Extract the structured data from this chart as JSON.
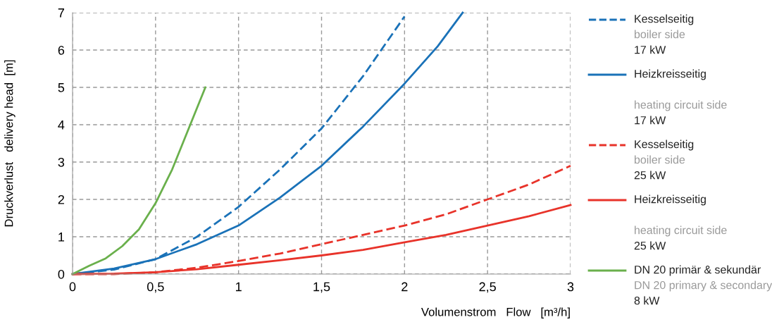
{
  "chart_data": {
    "type": "line",
    "xlabel": "Volumenstrom   Flow   [m³/h]",
    "ylabel": "Druckverlust   delivery head  [m]",
    "xlim": [
      0,
      3
    ],
    "ylim": [
      0,
      7
    ],
    "xticks": [
      0,
      {
        "value": 0.5,
        "label": "0,5"
      },
      1,
      {
        "value": 1.5,
        "label": "1,5"
      },
      2,
      {
        "value": 2.5,
        "label": "2,5"
      },
      3
    ],
    "yticks": [
      0,
      1,
      2,
      3,
      4,
      5,
      6,
      7
    ],
    "grid": true,
    "legend": "right",
    "marker": "none",
    "series": [
      {
        "name": "Kesselseitig\nboiler side\n17 kW",
        "color": "#1a72b8",
        "line_style": "dashed",
        "x": [
          0,
          0.25,
          0.5,
          0.75,
          1,
          1.25,
          1.5,
          1.75,
          2
        ],
        "values": [
          0,
          0.12,
          0.4,
          1.0,
          1.8,
          2.8,
          3.9,
          5.3,
          6.9
        ]
      },
      {
        "name": "Heizkreisseitig\n\nheating circuit side\n17 kW",
        "color": "#1a72b8",
        "line_style": "solid",
        "x": [
          0,
          0.25,
          0.5,
          0.75,
          1,
          1.25,
          1.5,
          1.75,
          2,
          2.2,
          2.35
        ],
        "values": [
          0,
          0.15,
          0.4,
          0.8,
          1.3,
          2.05,
          2.9,
          3.95,
          5.1,
          6.1,
          7.0
        ]
      },
      {
        "name": "Kesselseitig\nboiler side\n25 kW",
        "color": "#e8332a",
        "line_style": "dashed",
        "x": [
          0,
          0.25,
          0.5,
          0.75,
          1,
          1.25,
          1.5,
          1.75,
          2,
          2.25,
          2.5,
          2.75,
          3
        ],
        "values": [
          0,
          0,
          0.05,
          0.17,
          0.35,
          0.55,
          0.8,
          1.05,
          1.3,
          1.6,
          2.0,
          2.4,
          2.9
        ]
      },
      {
        "name": "Heizkreisseitig\n\nheating circuit side\n25 kW",
        "color": "#e8332a",
        "line_style": "solid",
        "x": [
          0,
          0.25,
          0.5,
          0.75,
          1,
          1.25,
          1.5,
          1.75,
          2,
          2.25,
          2.5,
          2.75,
          3
        ],
        "values": [
          0,
          0.01,
          0.05,
          0.13,
          0.25,
          0.37,
          0.5,
          0.65,
          0.85,
          1.05,
          1.3,
          1.55,
          1.85
        ]
      },
      {
        "name": "DN 20 primär & sekundär\nDN 20 primary & secondary\n8 kW",
        "color": "#6ab04c",
        "line_style": "solid",
        "x": [
          0,
          0.1,
          0.2,
          0.3,
          0.4,
          0.5,
          0.6,
          0.7,
          0.8
        ],
        "values": [
          0,
          0.22,
          0.42,
          0.75,
          1.2,
          1.9,
          2.8,
          3.9,
          5.0
        ]
      }
    ]
  }
}
